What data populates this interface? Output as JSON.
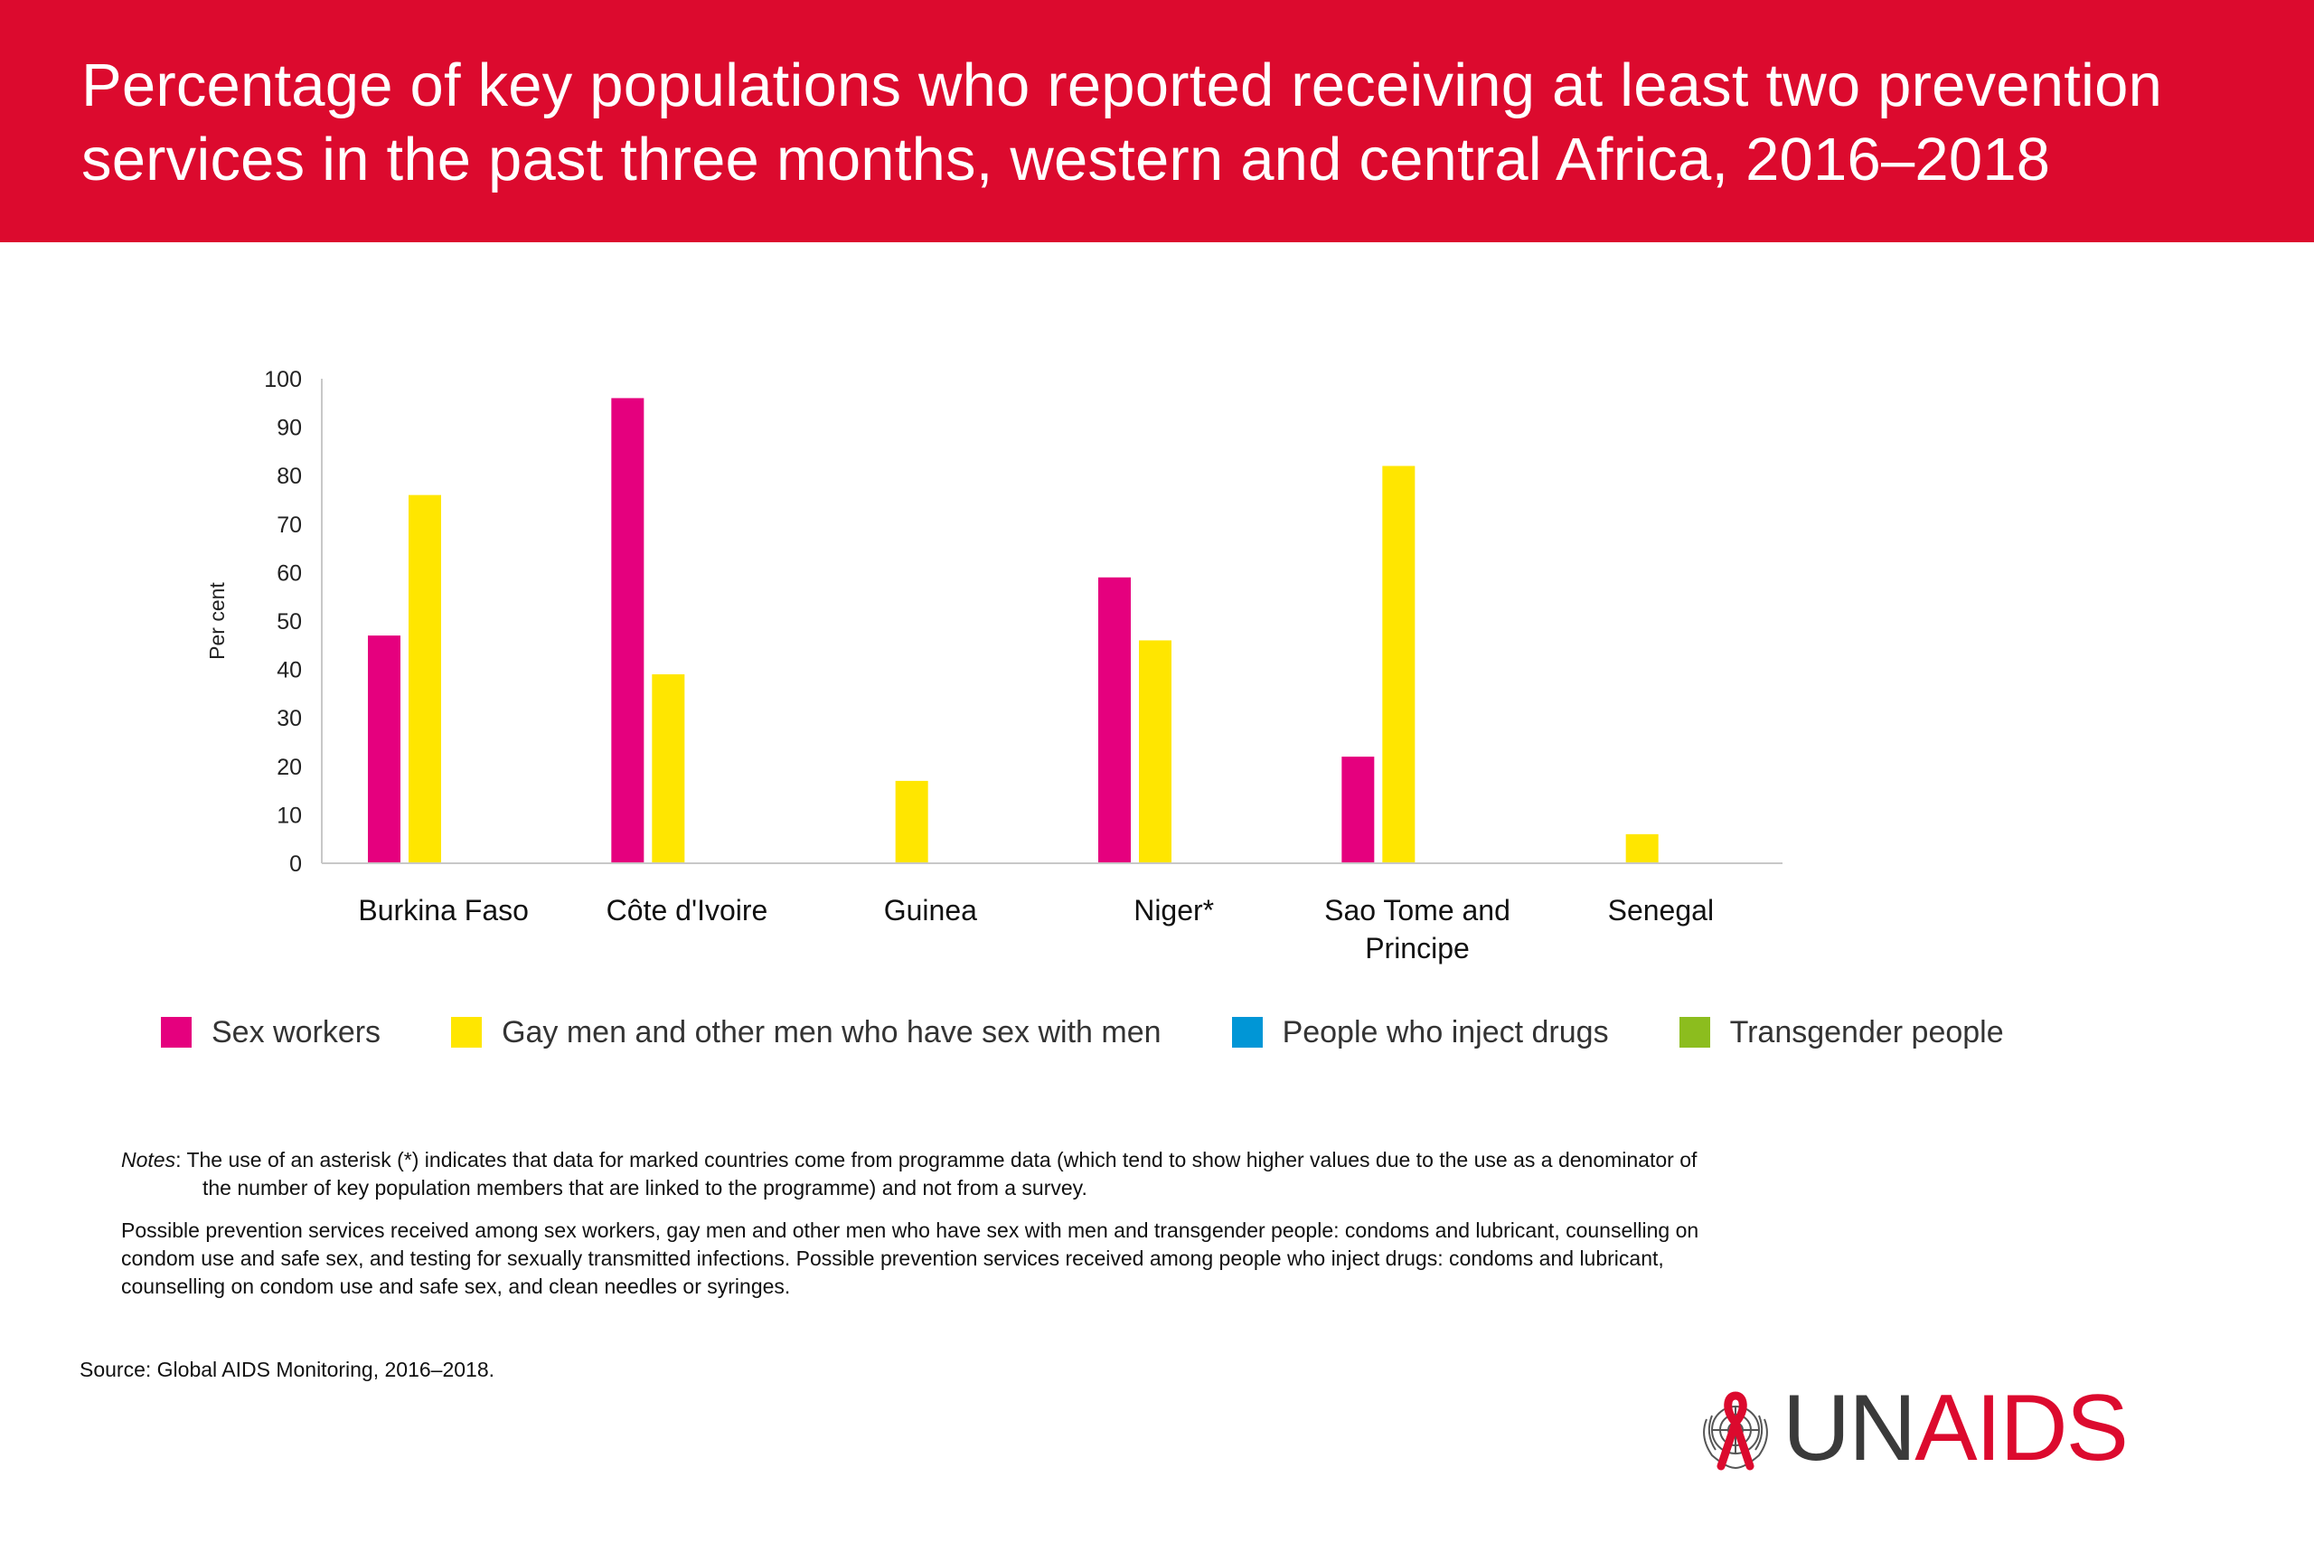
{
  "header": {
    "title_line1": "Percentage of key populations who reported receiving at least two prevention",
    "title_line2": "services in the past three months, western and central Africa, 2016–2018"
  },
  "chart_data": {
    "type": "bar",
    "title": "Percentage of key populations who reported receiving at least two prevention services in the past three months, western and central Africa, 2016–2018",
    "ylabel": "Per cent",
    "xlabel": "",
    "ylim": [
      0,
      100
    ],
    "yticks": [
      0,
      10,
      20,
      30,
      40,
      50,
      60,
      70,
      80,
      90,
      100
    ],
    "grid": false,
    "legend_position": "bottom",
    "categories": [
      "Burkina Faso",
      "Côte d'Ivoire",
      "Guinea",
      "Niger*",
      "Sao Tome and Principe",
      "Senegal"
    ],
    "category_lines": [
      [
        "Burkina Faso"
      ],
      [
        "Côte d'Ivoire"
      ],
      [
        "Guinea"
      ],
      [
        "Niger*"
      ],
      [
        "Sao Tome and",
        "Principe"
      ],
      [
        "Senegal"
      ]
    ],
    "series": [
      {
        "name": "Sex workers",
        "color": "#e5007e",
        "values": [
          47,
          96,
          null,
          59,
          22,
          null
        ]
      },
      {
        "name": "Gay men and other men who have sex with men",
        "color": "#ffe600",
        "values": [
          76,
          39,
          17,
          46,
          82,
          6
        ]
      },
      {
        "name": "People who inject drugs",
        "color": "#0096d6",
        "values": [
          null,
          null,
          null,
          null,
          null,
          null
        ]
      },
      {
        "name": "Transgender people",
        "color": "#8cbd1e",
        "values": [
          null,
          null,
          null,
          null,
          null,
          null
        ]
      }
    ]
  },
  "notes": {
    "label": "Notes",
    "note1_text": ":  The use of an asterisk (*) indicates that data for marked  countries come from programme data (which tend to show higher values due to the use as a denominator of the number  of key population members that are linked to the programme)  and not from a survey.",
    "note2_text": "Possible prevention services received among sex workers, gay  men and other men who have sex with men and transgender  people: condoms and lubricant, counselling on condom use  and safe sex, and testing for sexually transmitted infections.  Possible prevention services received among people who  inject drugs: condoms and lubricant, counselling on condom  use and safe sex, and clean needles or syringes."
  },
  "source": "Source: Global AIDS Monitoring, 2016–2018.",
  "logo": {
    "un": "UN",
    "aids": "AIDS",
    "accent": "#dc0a2e"
  }
}
